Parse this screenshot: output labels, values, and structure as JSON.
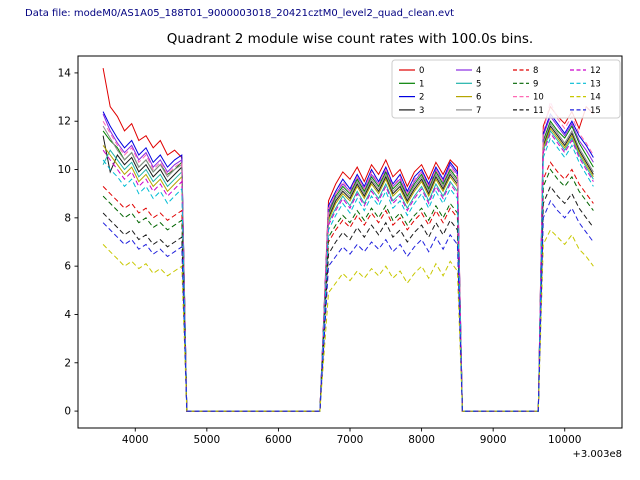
{
  "header": {
    "data_file_label": "Data file: modeM0/AS1A05_188T01_9000003018_20421cztM0_level2_quad_clean.evt"
  },
  "chart_data": {
    "type": "line",
    "title": "Quadrant 2 module wise count rates with 100.0s bins.",
    "xlabel": "",
    "ylabel": "",
    "x_offset_label": "+3.003e8",
    "xlim": [
      3200,
      10800
    ],
    "ylim": [
      -0.7,
      14.7
    ],
    "xticks": [
      4000,
      5000,
      6000,
      7000,
      8000,
      9000,
      10000
    ],
    "yticks": [
      0,
      2,
      4,
      6,
      8,
      10,
      12,
      14
    ],
    "grid": false,
    "legend_position": "upper right",
    "legend_ncol": 4,
    "x": [
      3550,
      3650,
      3750,
      3850,
      3950,
      4050,
      4150,
      4250,
      4350,
      4450,
      4550,
      4650,
      4720,
      6580,
      6700,
      6800,
      6900,
      7000,
      7100,
      7200,
      7300,
      7400,
      7500,
      7600,
      7700,
      7800,
      7900,
      8000,
      8100,
      8200,
      8300,
      8400,
      8500,
      8570,
      9630,
      9700,
      9800,
      9900,
      10000,
      10100,
      10200,
      10300,
      10400
    ],
    "series": [
      {
        "name": "0",
        "color": "#e00000",
        "dash": false,
        "values": [
          14.2,
          12.6,
          12.2,
          11.6,
          11.9,
          11.2,
          11.4,
          10.9,
          11.2,
          10.6,
          10.8,
          10.5,
          0,
          0,
          8.7,
          9.4,
          9.9,
          9.6,
          10.1,
          9.5,
          10.2,
          9.8,
          10.4,
          9.7,
          10.0,
          9.3,
          9.9,
          10.2,
          9.6,
          10.3,
          9.8,
          10.4,
          10.1,
          0,
          0,
          11.8,
          12.6,
          12.2,
          11.9,
          12.4,
          11.7,
          12.6,
          12.3
        ]
      },
      {
        "name": "1",
        "color": "#008000",
        "dash": false,
        "values": [
          11.6,
          11.2,
          10.9,
          10.4,
          10.7,
          10.1,
          10.4,
          9.9,
          10.2,
          9.8,
          10.0,
          10.3,
          0,
          0,
          8.2,
          8.9,
          9.3,
          9.0,
          9.6,
          9.1,
          9.7,
          9.3,
          9.9,
          9.2,
          9.5,
          8.9,
          9.4,
          9.8,
          9.2,
          9.9,
          9.4,
          10.0,
          9.6,
          0,
          0,
          11.2,
          12.0,
          11.6,
          11.3,
          11.8,
          11.1,
          10.6,
          10.1
        ]
      },
      {
        "name": "2",
        "color": "#0000e0",
        "dash": false,
        "values": [
          12.4,
          11.8,
          11.3,
          10.9,
          11.2,
          10.6,
          10.9,
          10.3,
          10.6,
          10.1,
          10.4,
          10.6,
          0,
          0,
          8.5,
          9.1,
          9.6,
          9.2,
          9.8,
          9.3,
          10.0,
          9.5,
          10.1,
          9.4,
          9.8,
          9.1,
          9.7,
          10.0,
          9.4,
          10.1,
          9.6,
          10.3,
          9.9,
          0,
          0,
          11.5,
          12.3,
          11.9,
          11.5,
          12.0,
          11.4,
          11.0,
          10.5
        ]
      },
      {
        "name": "3",
        "color": "#1a1a1a",
        "dash": false,
        "values": [
          11.4,
          9.9,
          10.6,
          10.2,
          10.5,
          9.9,
          10.2,
          9.7,
          10.0,
          9.5,
          9.8,
          10.1,
          0,
          0,
          8.0,
          8.7,
          9.1,
          8.8,
          9.4,
          8.9,
          9.5,
          9.1,
          9.7,
          9.0,
          9.3,
          8.7,
          9.2,
          9.6,
          9.0,
          9.7,
          9.2,
          9.8,
          9.4,
          0,
          0,
          11.0,
          11.8,
          11.4,
          11.0,
          11.5,
          10.8,
          10.3,
          9.8
        ]
      },
      {
        "name": "4",
        "color": "#8a2be2",
        "dash": false,
        "values": [
          12.3,
          11.6,
          11.1,
          10.7,
          11.0,
          10.4,
          10.7,
          10.1,
          10.4,
          9.9,
          10.2,
          10.4,
          0,
          0,
          8.3,
          9.0,
          9.4,
          9.1,
          9.7,
          9.2,
          9.8,
          9.4,
          10.0,
          9.3,
          9.6,
          9.0,
          9.5,
          9.9,
          9.3,
          10.0,
          9.5,
          10.2,
          9.8,
          0,
          0,
          11.4,
          12.2,
          11.8,
          11.4,
          11.9,
          11.2,
          10.8,
          10.3
        ]
      },
      {
        "name": "5",
        "color": "#20b2aa",
        "dash": false,
        "values": [
          10.2,
          10.8,
          10.4,
          10.0,
          10.3,
          9.7,
          10.0,
          9.5,
          9.8,
          9.3,
          9.6,
          9.9,
          0,
          0,
          7.8,
          8.4,
          8.9,
          8.5,
          9.1,
          8.6,
          9.2,
          8.8,
          9.4,
          8.7,
          9.0,
          8.4,
          8.9,
          9.3,
          8.7,
          9.4,
          8.9,
          9.5,
          9.1,
          0,
          0,
          10.8,
          11.6,
          11.2,
          10.8,
          11.3,
          10.6,
          10.1,
          9.6
        ]
      },
      {
        "name": "6",
        "color": "#b5a500",
        "dash": false,
        "values": [
          11.0,
          10.6,
          10.2,
          9.8,
          10.1,
          9.5,
          9.8,
          9.3,
          9.6,
          9.1,
          9.4,
          9.7,
          0,
          0,
          7.9,
          8.6,
          9.0,
          8.7,
          9.3,
          8.8,
          9.4,
          9.0,
          9.6,
          8.9,
          9.2,
          8.6,
          9.1,
          9.5,
          8.9,
          9.6,
          9.1,
          9.7,
          9.3,
          0,
          0,
          10.9,
          11.7,
          11.3,
          10.9,
          11.4,
          10.7,
          10.2,
          9.7
        ]
      },
      {
        "name": "7",
        "color": "#8c8c8c",
        "dash": false,
        "values": [
          11.8,
          11.3,
          10.8,
          10.4,
          10.7,
          10.1,
          10.4,
          9.9,
          10.2,
          9.7,
          10.0,
          10.2,
          0,
          0,
          8.1,
          8.8,
          9.2,
          8.9,
          9.5,
          9.0,
          9.6,
          9.2,
          9.8,
          9.1,
          9.4,
          8.8,
          9.3,
          9.7,
          9.1,
          9.8,
          9.3,
          9.9,
          9.5,
          0,
          0,
          11.1,
          11.9,
          11.5,
          11.1,
          11.6,
          10.9,
          10.4,
          9.9
        ]
      },
      {
        "name": "8",
        "color": "#e00000",
        "dash": true,
        "values": [
          9.3,
          9.0,
          8.7,
          8.4,
          8.6,
          8.2,
          8.4,
          8.0,
          8.2,
          7.9,
          8.1,
          8.3,
          0,
          0,
          7.0,
          7.5,
          7.9,
          7.6,
          8.1,
          7.7,
          8.2,
          7.8,
          8.3,
          7.7,
          8.0,
          7.5,
          7.9,
          8.2,
          7.7,
          8.3,
          7.8,
          8.4,
          8.0,
          0,
          0,
          9.6,
          10.3,
          9.9,
          9.6,
          10.0,
          9.4,
          9.0,
          8.6
        ]
      },
      {
        "name": "9",
        "color": "#006400",
        "dash": true,
        "values": [
          8.9,
          8.6,
          8.3,
          8.0,
          8.2,
          7.8,
          8.0,
          7.6,
          7.8,
          7.5,
          7.7,
          7.9,
          0,
          0,
          7.2,
          7.7,
          8.1,
          7.8,
          8.3,
          7.9,
          8.4,
          8.0,
          8.5,
          7.9,
          8.2,
          7.7,
          8.1,
          8.4,
          7.9,
          8.5,
          8.0,
          8.6,
          8.2,
          0,
          0,
          9.3,
          10.0,
          9.6,
          9.3,
          9.7,
          9.1,
          8.7,
          8.3
        ]
      },
      {
        "name": "10",
        "color": "#ff69b4",
        "dash": true,
        "values": [
          12.0,
          11.5,
          11.0,
          10.6,
          10.9,
          10.3,
          10.6,
          10.0,
          10.3,
          9.8,
          10.1,
          10.3,
          0,
          0,
          8.4,
          9.0,
          9.5,
          9.1,
          9.7,
          9.2,
          9.9,
          9.4,
          10.0,
          9.3,
          9.7,
          9.0,
          9.6,
          9.9,
          9.3,
          10.0,
          9.5,
          10.1,
          9.7,
          0,
          0,
          11.6,
          12.8,
          12.1,
          11.7,
          12.2,
          11.5,
          11.1,
          10.6
        ]
      },
      {
        "name": "11",
        "color": "#1a1a1a",
        "dash": true,
        "values": [
          8.2,
          7.9,
          7.6,
          7.3,
          7.5,
          7.1,
          7.3,
          6.9,
          7.1,
          6.8,
          7.0,
          7.2,
          0,
          0,
          6.5,
          7.0,
          7.4,
          7.1,
          7.6,
          7.2,
          7.7,
          7.3,
          7.8,
          7.2,
          7.5,
          7.0,
          7.4,
          7.7,
          7.2,
          7.8,
          7.3,
          7.9,
          7.5,
          0,
          0,
          8.6,
          9.3,
          8.9,
          8.6,
          9.0,
          8.4,
          8.0,
          7.6
        ]
      },
      {
        "name": "12",
        "color": "#cc00cc",
        "dash": true,
        "values": [
          10.8,
          10.4,
          10.0,
          9.6,
          9.9,
          9.3,
          9.6,
          9.1,
          9.4,
          8.9,
          9.2,
          9.5,
          0,
          0,
          7.7,
          8.3,
          8.8,
          8.4,
          9.0,
          8.5,
          9.1,
          8.7,
          9.3,
          8.6,
          8.9,
          8.3,
          8.8,
          9.2,
          8.6,
          9.3,
          8.8,
          9.4,
          9.0,
          0,
          0,
          10.7,
          11.5,
          11.1,
          10.7,
          11.2,
          10.5,
          10.0,
          9.5
        ]
      },
      {
        "name": "13",
        "color": "#00bcd4",
        "dash": true,
        "values": [
          10.4,
          10.0,
          9.7,
          9.3,
          9.6,
          9.0,
          9.3,
          8.8,
          9.1,
          8.6,
          8.9,
          9.2,
          0,
          0,
          7.5,
          8.1,
          8.6,
          8.2,
          8.8,
          8.3,
          8.9,
          8.5,
          9.1,
          8.4,
          8.7,
          8.1,
          8.6,
          9.0,
          8.4,
          9.1,
          8.6,
          9.2,
          8.8,
          0,
          0,
          10.5,
          11.3,
          10.9,
          10.5,
          11.0,
          10.3,
          9.8,
          9.3
        ]
      },
      {
        "name": "14",
        "color": "#c8c800",
        "dash": true,
        "values": [
          6.9,
          6.6,
          6.3,
          6.0,
          6.2,
          5.9,
          6.1,
          5.7,
          5.9,
          5.6,
          5.8,
          6.0,
          0,
          0,
          4.9,
          5.3,
          5.7,
          5.4,
          5.8,
          5.5,
          5.9,
          5.6,
          6.0,
          5.5,
          5.8,
          5.3,
          5.7,
          6.0,
          5.5,
          6.1,
          5.6,
          6.2,
          5.8,
          0,
          0,
          6.9,
          7.5,
          7.2,
          6.9,
          7.3,
          6.7,
          6.4,
          6.0
        ]
      },
      {
        "name": "15",
        "color": "#2020dd",
        "dash": true,
        "values": [
          7.8,
          7.5,
          7.2,
          6.9,
          7.1,
          6.7,
          6.9,
          6.5,
          6.7,
          6.4,
          6.6,
          6.8,
          0,
          0,
          6.0,
          6.4,
          6.8,
          6.5,
          6.9,
          6.6,
          7.0,
          6.7,
          7.1,
          6.6,
          6.9,
          6.4,
          6.8,
          7.1,
          6.6,
          7.2,
          6.7,
          7.3,
          6.9,
          0,
          0,
          8.0,
          8.7,
          8.3,
          8.0,
          8.4,
          7.8,
          7.4,
          7.0
        ]
      }
    ]
  }
}
